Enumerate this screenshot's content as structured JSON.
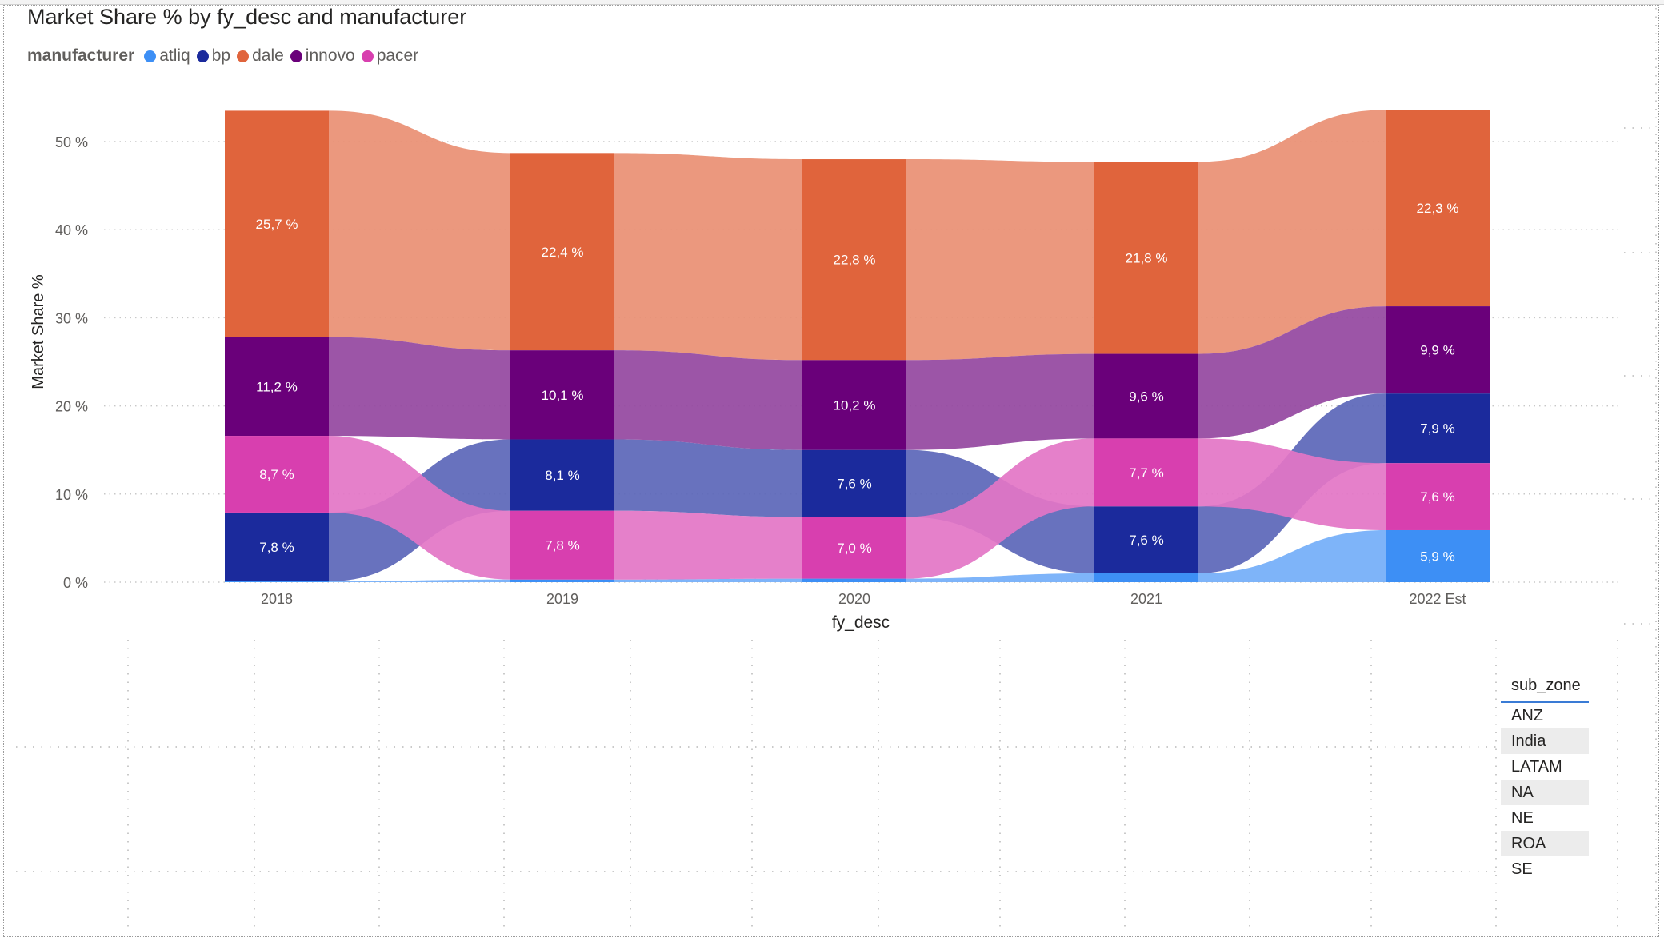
{
  "chart_data": {
    "type": "ribbon",
    "title": "Market Share % by fy_desc and manufacturer",
    "xlabel": "fy_desc",
    "ylabel": "Market Share %",
    "ylim": [
      0,
      50
    ],
    "yticks": [
      "0 %",
      "10 %",
      "20 %",
      "30 %",
      "40 %",
      "50 %"
    ],
    "grid": true,
    "legend_title": "manufacturer",
    "legend_position": "top-left",
    "categories": [
      "2018",
      "2019",
      "2020",
      "2021",
      "2022 Est"
    ],
    "series": [
      {
        "name": "atliq",
        "color": "#3d8ff5",
        "values": [
          0.1,
          0.3,
          0.4,
          1.0,
          5.9
        ],
        "labels": [
          "",
          "",
          "",
          "",
          "5,9 %"
        ]
      },
      {
        "name": "bp",
        "color": "#1b2a9c",
        "values": [
          7.8,
          8.1,
          7.6,
          7.6,
          7.9
        ],
        "labels": [
          "7,8 %",
          "8,1 %",
          "7,6 %",
          "7,6 %",
          "7,9 %"
        ]
      },
      {
        "name": "dale",
        "color": "#e0643c",
        "values": [
          25.7,
          22.4,
          22.8,
          21.8,
          22.3
        ],
        "labels": [
          "25,7 %",
          "22,4 %",
          "22,8 %",
          "21,8 %",
          "22,3 %"
        ]
      },
      {
        "name": "innovo",
        "color": "#6a007a",
        "values": [
          11.2,
          10.1,
          10.2,
          9.6,
          9.9
        ],
        "labels": [
          "11,2 %",
          "10,1 %",
          "10,2 %",
          "9,6 %",
          "9,9 %"
        ]
      },
      {
        "name": "pacer",
        "color": "#d83faf",
        "values": [
          8.7,
          7.8,
          7.0,
          7.7,
          7.6
        ],
        "labels": [
          "8,7 %",
          "7,8 %",
          "7,0 %",
          "7,7 %",
          "7,6 %"
        ]
      }
    ]
  },
  "slicer": {
    "title": "sub_zone",
    "items": [
      "ANZ",
      "India",
      "LATAM",
      "NA",
      "NE",
      "ROA",
      "SE"
    ]
  }
}
